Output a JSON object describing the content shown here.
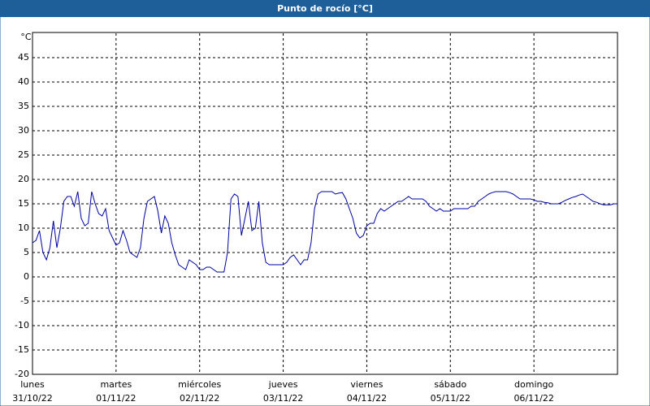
{
  "chart_data": {
    "type": "line",
    "title": "Punto de rocío [°C]",
    "y_unit": "°C",
    "x": [
      0,
      1,
      2,
      3,
      4,
      5,
      6,
      7,
      8,
      9,
      10,
      11,
      12,
      13,
      14,
      15,
      16,
      17,
      18,
      19,
      20,
      21,
      22,
      23,
      24,
      25,
      26,
      27,
      28,
      29,
      30,
      31,
      32,
      33,
      34,
      35,
      36,
      37,
      38,
      39,
      40,
      41,
      42,
      43,
      44,
      45,
      46,
      47,
      48,
      49,
      50,
      51,
      52,
      53,
      54,
      55,
      56,
      57,
      58,
      59,
      60,
      61,
      62,
      63,
      64,
      65,
      66,
      67,
      68,
      69,
      70,
      71,
      72,
      73,
      74,
      75,
      76,
      77,
      78,
      79,
      80,
      81,
      82,
      83,
      84,
      85,
      86,
      87,
      88,
      89,
      90,
      91,
      92,
      93,
      94,
      95,
      96,
      97,
      98,
      99,
      100,
      101,
      102,
      103,
      104,
      105,
      106,
      107,
      108,
      109,
      110,
      111,
      112,
      113,
      114,
      115,
      116,
      117,
      118,
      119,
      120,
      121,
      122,
      123,
      124,
      125,
      126,
      127,
      128,
      129,
      130,
      131,
      132,
      133,
      134,
      135,
      136,
      137,
      138,
      139,
      140,
      141,
      142,
      143,
      144,
      145,
      146,
      147,
      148,
      149,
      150,
      151,
      152,
      153,
      154,
      155,
      156,
      157,
      158,
      159,
      160,
      161,
      162,
      163,
      164,
      165,
      166,
      167,
      168
    ],
    "series": [
      {
        "color": "#0000a0",
        "values": [
          7,
          7.5,
          9.5,
          5,
          3.5,
          6,
          11.5,
          6,
          10,
          15.5,
          16.5,
          16.5,
          14.5,
          17.5,
          12,
          10.5,
          11,
          17.5,
          15,
          13,
          12.5,
          14,
          9.5,
          8,
          6.5,
          7,
          9.5,
          7.5,
          5,
          4.5,
          4,
          6,
          12,
          15.5,
          16,
          16.5,
          13.5,
          9,
          12.5,
          11,
          7,
          4.5,
          2.5,
          2,
          1.5,
          3.5,
          3,
          2.5,
          1.5,
          1.5,
          2,
          2,
          1.5,
          1,
          1,
          1,
          5,
          16,
          17,
          16.5,
          8.5,
          12,
          15.5,
          9.5,
          10,
          15.5,
          7,
          3,
          2.5,
          2.5,
          2.5,
          2.5,
          2.5,
          3,
          4,
          4.5,
          3.5,
          2.5,
          3.5,
          3.5,
          7,
          14,
          17,
          17.5,
          17.5,
          17.5,
          17.5,
          17,
          17.2,
          17.3,
          16,
          14,
          12,
          9,
          8,
          8.5,
          10.5,
          11,
          11,
          13,
          14,
          13.5,
          14,
          14.5,
          15,
          15.5,
          15.5,
          16,
          16.5,
          16,
          16,
          16,
          16,
          15.5,
          14.5,
          14,
          13.5,
          14,
          13.5,
          13.5,
          13.5,
          14,
          14,
          14,
          14,
          14,
          14.5,
          14.5,
          15.5,
          16,
          16.5,
          17,
          17.3,
          17.5,
          17.5,
          17.5,
          17.5,
          17.3,
          17,
          16.5,
          16,
          16,
          16,
          16,
          15.8,
          15.5,
          15.5,
          15.3,
          15.2,
          15,
          15,
          15,
          15.3,
          15.7,
          16,
          16.3,
          16.5,
          16.8,
          17,
          16.5,
          16,
          15.5,
          15.3,
          15,
          14.8,
          14.8,
          14.8,
          15,
          15
        ]
      }
    ],
    "xlim": [
      0,
      168
    ],
    "xticks": [
      {
        "value": 0,
        "weekday": "lunes",
        "date": "31/10/22"
      },
      {
        "value": 24,
        "weekday": "martes",
        "date": "01/11/22"
      },
      {
        "value": 48,
        "weekday": "miércoles",
        "date": "02/11/22"
      },
      {
        "value": 72,
        "weekday": "jueves",
        "date": "03/11/22"
      },
      {
        "value": 96,
        "weekday": "viernes",
        "date": "04/11/22"
      },
      {
        "value": 120,
        "weekday": "sábado",
        "date": "05/11/22"
      },
      {
        "value": 144,
        "weekday": "domingo",
        "date": "06/11/22"
      }
    ],
    "ylim": [
      -20,
      50
    ],
    "yticks": [
      -20,
      -15,
      -10,
      -5,
      0,
      5,
      10,
      15,
      20,
      25,
      30,
      35,
      40,
      45
    ],
    "grid": true
  }
}
